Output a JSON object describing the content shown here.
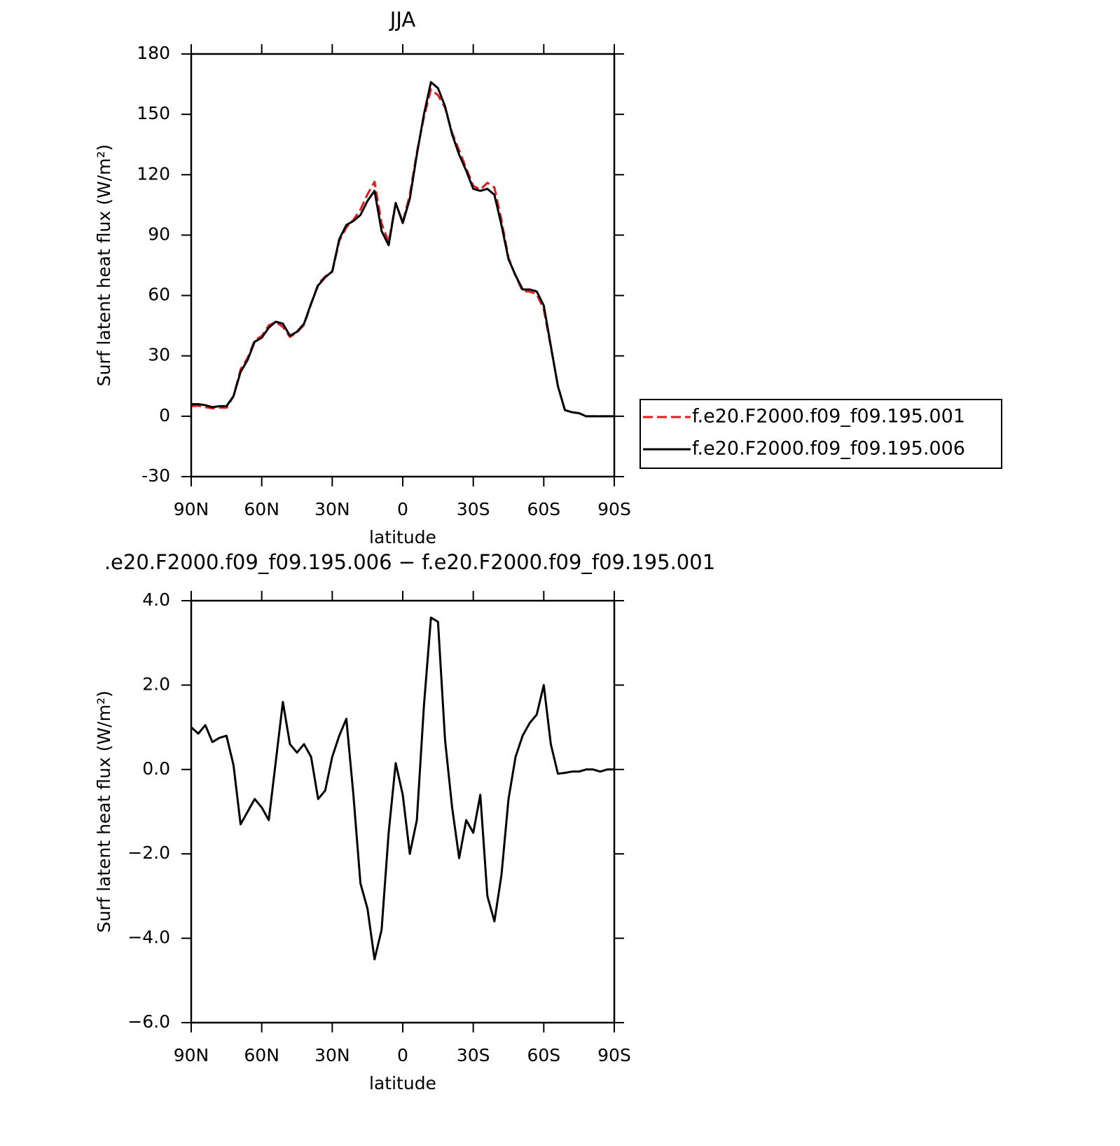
{
  "chart_data": [
    {
      "type": "line",
      "title": "JJA",
      "xlabel": "latitude",
      "ylabel": "Surf latent heat flux (W/m²)",
      "x": [
        90,
        87,
        84,
        81,
        78,
        75,
        72,
        69,
        66,
        63,
        60,
        57,
        54,
        51,
        48,
        45,
        42,
        39,
        36,
        33,
        30,
        27,
        24,
        21,
        18,
        15,
        12,
        9,
        6,
        3,
        0,
        -3,
        -6,
        -9,
        -12,
        -15,
        -18,
        -21,
        -24,
        -27,
        -30,
        -33,
        -36,
        -39,
        -42,
        -45,
        -48,
        -51,
        -54,
        -57,
        -60,
        -63,
        -66,
        -69,
        -72,
        -75,
        -78,
        -81,
        -84,
        -87,
        -90
      ],
      "series": [
        {
          "name": "f.e20.F2000.f09_f09.195.001",
          "color": "#e41a1c",
          "dashed": true,
          "values": [
            5,
            5.2,
            4.5,
            3.9,
            4.3,
            4.2,
            9.9,
            23.3,
            29,
            37.7,
            39.9,
            45.2,
            46.8,
            44.4,
            39.4,
            41.6,
            45.4,
            55.7,
            65.7,
            69.5,
            71.7,
            87.2,
            93.8,
            97.6,
            102.7,
            110.3,
            116.5,
            95.8,
            86.5,
            105.85,
            96.6,
            110,
            131.2,
            148.5,
            162.4,
            159.5,
            153.3,
            140.9,
            132.1,
            123.2,
            114.5,
            112.6,
            116,
            113.6,
            97.5,
            78.7,
            69.7,
            62.2,
            61.9,
            60.7,
            53,
            34.4,
            15.1,
            3.1,
            2,
            1.5,
            0,
            0,
            0,
            0,
            0
          ]
        },
        {
          "name": "f.e20.F2000.f09_f09.195.006",
          "color": "#000000",
          "dashed": false,
          "values": [
            6,
            6,
            5.5,
            4.5,
            5,
            5,
            10,
            22,
            28,
            37,
            39,
            44,
            47,
            46,
            40,
            42,
            46,
            56,
            65,
            69,
            72,
            88,
            95,
            97,
            100,
            107,
            112,
            92,
            85,
            106,
            96,
            108,
            130,
            150,
            166,
            163,
            154,
            140,
            130,
            122,
            113,
            112,
            113,
            110,
            95,
            78,
            70,
            63,
            63,
            62,
            55,
            35,
            15,
            3,
            2,
            1.5,
            0,
            0,
            0,
            0,
            0
          ]
        }
      ],
      "xlim": [
        90,
        -90
      ],
      "xticks": [
        {
          "value": 90,
          "label": "90N"
        },
        {
          "value": 60,
          "label": "60N"
        },
        {
          "value": 30,
          "label": "30N"
        },
        0,
        {
          "value": -30,
          "label": "30S"
        },
        {
          "value": -60,
          "label": "60S"
        },
        {
          "value": -90,
          "label": "90S"
        }
      ],
      "ylim": [
        -30,
        180
      ],
      "yticks": [
        -30,
        0,
        30,
        60,
        90,
        120,
        150,
        180
      ],
      "legend": "right"
    },
    {
      "type": "line",
      "title": ".e20.F2000.f09_f09.195.006 − f.e20.F2000.f09_f09.195.001",
      "xlabel": "latitude",
      "ylabel": "Surf latent heat flux (W/m²)",
      "x": [
        90,
        87,
        84,
        81,
        78,
        75,
        72,
        69,
        66,
        63,
        60,
        57,
        54,
        51,
        48,
        45,
        42,
        39,
        36,
        33,
        30,
        27,
        24,
        21,
        18,
        15,
        12,
        9,
        6,
        3,
        0,
        -3,
        -6,
        -9,
        -12,
        -15,
        -18,
        -21,
        -24,
        -27,
        -30,
        -33,
        -36,
        -39,
        -42,
        -45,
        -48,
        -51,
        -54,
        -57,
        -60,
        -63,
        -66,
        -69,
        -72,
        -75,
        -78,
        -81,
        -84,
        -87,
        -90
      ],
      "color": "#000000",
      "values": [
        1.0,
        0.85,
        1.05,
        0.65,
        0.75,
        0.8,
        0.1,
        -1.3,
        -1.0,
        -0.7,
        -0.9,
        -1.2,
        0.2,
        1.6,
        0.6,
        0.4,
        0.6,
        0.3,
        -0.7,
        -0.5,
        0.3,
        0.8,
        1.2,
        -0.6,
        -2.7,
        -3.3,
        -4.5,
        -3.8,
        -1.5,
        0.15,
        -0.6,
        -2.0,
        -1.2,
        1.5,
        3.6,
        3.5,
        0.7,
        -0.9,
        -2.1,
        -1.2,
        -1.5,
        -0.6,
        -3.0,
        -3.6,
        -2.5,
        -0.7,
        0.3,
        0.8,
        1.1,
        1.3,
        2.0,
        0.6,
        -0.1,
        -0.08,
        -0.05,
        -0.05,
        0,
        0,
        -0.05,
        0,
        0
      ],
      "xlim": [
        90,
        -90
      ],
      "xticks": [
        {
          "value": 90,
          "label": "90N"
        },
        {
          "value": 60,
          "label": "60N"
        },
        {
          "value": 30,
          "label": "30N"
        },
        0,
        {
          "value": -30,
          "label": "30S"
        },
        {
          "value": -60,
          "label": "60S"
        },
        {
          "value": -90,
          "label": "90S"
        }
      ],
      "ylim": [
        -6,
        4
      ],
      "yticks": [
        {
          "value": -6,
          "label": "−6.0"
        },
        {
          "value": -4,
          "label": "−4.0"
        },
        {
          "value": -2,
          "label": "−2.0"
        },
        {
          "value": 0,
          "label": "0.0"
        },
        {
          "value": 2,
          "label": "2.0"
        },
        {
          "value": 4,
          "label": "4.0"
        }
      ]
    }
  ]
}
